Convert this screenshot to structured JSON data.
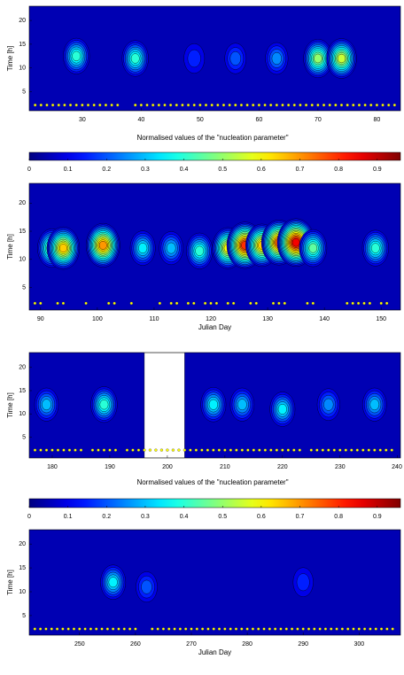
{
  "chart_data": [
    {
      "type": "contour",
      "ylabel": "Time [h]",
      "xlim": [
        21,
        84
      ],
      "ylim": [
        1,
        23
      ],
      "xticks": [
        30,
        40,
        50,
        60,
        70,
        80
      ],
      "yticks": [
        5,
        10,
        15,
        20
      ],
      "events": [
        [
          29,
          12.5,
          0.35
        ],
        [
          39,
          12,
          0.35
        ],
        [
          49,
          12,
          0.12
        ],
        [
          56,
          12,
          0.15
        ],
        [
          63,
          12,
          0.2
        ],
        [
          70,
          12,
          0.45
        ],
        [
          74,
          12,
          0.5
        ]
      ],
      "dots_hour": 2.2,
      "dots": [
        22,
        23,
        24,
        25,
        26,
        27,
        28,
        29,
        30,
        31,
        32,
        33,
        34,
        35,
        36,
        39,
        40,
        41,
        42,
        43,
        44,
        45,
        46,
        47,
        48,
        49,
        50,
        51,
        52,
        53,
        54,
        55,
        56,
        57,
        58,
        59,
        60,
        61,
        62,
        63,
        64,
        65,
        66,
        67,
        68,
        69,
        70,
        71,
        72,
        73,
        74,
        75,
        76,
        77,
        78,
        79,
        80,
        81,
        82,
        83
      ]
    },
    {
      "type": "colorbar",
      "title": "Normalised values of the \"nucleation parameter\"",
      "lim": [
        0,
        0.96
      ],
      "ticks": [
        0,
        0.1,
        0.2,
        0.3,
        0.4,
        0.5,
        0.6,
        0.7,
        0.8,
        0.9
      ]
    },
    {
      "type": "contour",
      "ylabel": "Time [h]",
      "xlabel": "Julian Day",
      "xlim": [
        88,
        153.4
      ],
      "ylim": [
        1,
        23.5
      ],
      "xticks": [
        90,
        100,
        110,
        120,
        130,
        140,
        150
      ],
      "yticks": [
        5,
        10,
        15,
        20
      ],
      "events": [
        [
          92,
          12,
          0.45
        ],
        [
          94,
          12,
          0.6
        ],
        [
          101,
          12.5,
          0.65
        ],
        [
          108,
          12,
          0.3
        ],
        [
          113,
          12,
          0.25
        ],
        [
          118,
          11.5,
          0.35
        ],
        [
          123,
          12,
          0.55
        ],
        [
          126,
          12.5,
          0.75
        ],
        [
          129,
          12.5,
          0.6
        ],
        [
          132,
          13,
          0.7
        ],
        [
          135,
          13,
          0.8
        ],
        [
          138,
          12,
          0.4
        ],
        [
          149,
          12,
          0.35
        ]
      ],
      "dots_hour": 2.2,
      "dots": [
        89,
        90,
        93,
        94,
        98,
        102,
        103,
        106,
        111,
        113,
        114,
        116,
        117,
        119,
        120,
        121,
        123,
        124,
        127,
        128,
        131,
        132,
        133,
        137,
        138,
        144,
        145,
        146,
        147,
        148,
        150,
        151
      ]
    },
    {
      "type": "contour",
      "ylabel": "Time [h]",
      "xlim": [
        176,
        240.5
      ],
      "ylim": [
        0.5,
        23.2
      ],
      "xticks": [
        180,
        190,
        200,
        210,
        220,
        230,
        240
      ],
      "yticks": [
        5,
        10,
        15,
        20
      ],
      "gap": [
        196,
        203
      ],
      "events": [
        [
          179,
          12,
          0.25
        ],
        [
          189,
          12,
          0.35
        ],
        [
          208,
          12,
          0.3
        ],
        [
          213,
          12,
          0.25
        ],
        [
          220,
          11,
          0.3
        ],
        [
          228,
          12,
          0.2
        ],
        [
          236,
          12,
          0.25
        ]
      ],
      "dots_hour": 2.2,
      "dots": [
        177,
        178,
        179,
        180,
        181,
        182,
        183,
        184,
        185,
        187,
        188,
        189,
        190,
        191,
        193,
        194,
        195,
        196,
        197,
        198,
        199,
        200,
        201,
        202,
        203,
        204,
        205,
        206,
        207,
        208,
        209,
        210,
        211,
        212,
        213,
        214,
        215,
        216,
        217,
        218,
        219,
        220,
        221,
        222,
        223,
        225,
        226,
        227,
        228,
        229,
        230,
        231,
        232,
        233,
        234,
        235,
        236,
        237,
        238,
        239
      ]
    },
    {
      "type": "colorbar",
      "title": "Normalised values of the \"nucleation parameter\"",
      "lim": [
        0,
        0.96
      ],
      "ticks": [
        0,
        0.1,
        0.2,
        0.3,
        0.4,
        0.5,
        0.6,
        0.7,
        0.8,
        0.9
      ]
    },
    {
      "type": "contour",
      "ylabel": "Time [h]",
      "xlabel": "Julian Day",
      "xlim": [
        241,
        307.4
      ],
      "ylim": [
        0.9,
        23
      ],
      "xticks": [
        250,
        260,
        270,
        280,
        290,
        300
      ],
      "yticks": [
        5,
        10,
        15,
        20
      ],
      "events": [
        [
          256,
          12,
          0.3
        ],
        [
          262,
          11,
          0.15
        ],
        [
          290,
          12,
          0.1
        ]
      ],
      "dots_hour": 2.2,
      "dots": [
        242,
        243,
        244,
        245,
        246,
        247,
        248,
        249,
        250,
        251,
        252,
        253,
        254,
        255,
        256,
        257,
        258,
        259,
        260,
        263,
        264,
        265,
        266,
        267,
        268,
        269,
        270,
        271,
        272,
        273,
        274,
        275,
        276,
        277,
        278,
        279,
        280,
        281,
        282,
        283,
        284,
        285,
        286,
        287,
        288,
        289,
        290,
        291,
        292,
        293,
        294,
        295,
        296,
        297,
        298,
        299,
        300,
        301,
        302,
        303,
        304,
        305,
        306
      ]
    }
  ]
}
